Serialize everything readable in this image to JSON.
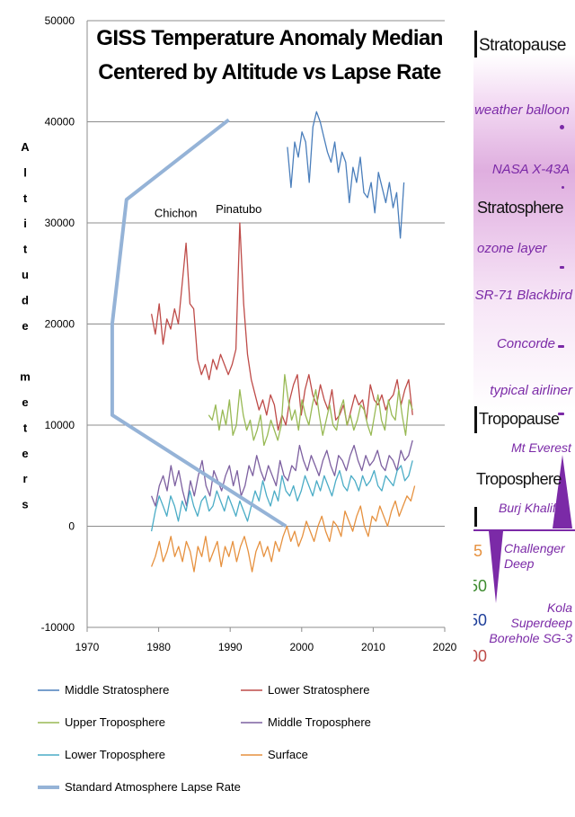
{
  "chart_data": {
    "type": "line",
    "title": "GISS Temperature Anomaly Median Centered by Altitude vs Lapse Rate",
    "title_lines": [
      "GISS Temperature Anomaly Median",
      "Centered by Altitude vs Lapse Rate"
    ],
    "ylabel": "Altitude meters",
    "ylabel_chars": [
      "A",
      "l",
      "t",
      "i",
      "t",
      "u",
      "d",
      "e",
      "",
      "m",
      "e",
      "t",
      "e",
      "r",
      "s"
    ],
    "xlabel": "",
    "xlim": [
      1970,
      2020
    ],
    "ylim": [
      -10000,
      50000
    ],
    "xticks": [
      1970,
      1980,
      1990,
      2000,
      2010,
      2020
    ],
    "yticks": [
      -10000,
      0,
      10000,
      20000,
      30000,
      40000,
      50000
    ],
    "xtick_labels": [
      "1970",
      "1980",
      "1990",
      "2000",
      "2010",
      "2020"
    ],
    "ytick_labels": [
      "-10000",
      "0",
      "10000",
      "20000",
      "30000",
      "40000",
      "50000"
    ],
    "grid": "horizontal",
    "legend_position": "bottom",
    "annotations": [
      {
        "text": "Chichon",
        "x": 1982.4,
        "y": 30600
      },
      {
        "text": "Pinatubo",
        "x": 1991.2,
        "y": 31000
      }
    ],
    "series": [
      {
        "name": "Middle Stratosphere",
        "color": "#4a7ebb",
        "x_start": 1998.0,
        "x_end": 2014.3,
        "values": [
          37500,
          33500,
          38000,
          36500,
          39000,
          38000,
          34000,
          39500,
          41000,
          40000,
          38500,
          37000,
          36000,
          38000,
          35000,
          37000,
          36000,
          32000,
          35500,
          34000,
          36500,
          33000,
          32500,
          34000,
          31000,
          35000,
          33500,
          32000,
          34000,
          31500,
          33000,
          28500,
          34000
        ]
      },
      {
        "name": "Lower Stratosphere",
        "color": "#be4b48",
        "x_start": 1979.0,
        "x_end": 2015.5,
        "values": [
          21000,
          19000,
          22000,
          18000,
          20500,
          19500,
          21500,
          20000,
          24000,
          28000,
          22000,
          21500,
          16500,
          15000,
          16000,
          14500,
          16500,
          15500,
          17000,
          16000,
          15000,
          16000,
          17500,
          30000,
          22000,
          17000,
          14500,
          13000,
          11500,
          12500,
          11000,
          13000,
          12000,
          9500,
          11000,
          10000,
          12500,
          14000,
          15000,
          11000,
          13500,
          15000,
          13000,
          12000,
          14000,
          12500,
          11500,
          13500,
          10500,
          11000,
          12000,
          10000,
          11500,
          13000,
          12000,
          12500,
          10500,
          14000,
          12500,
          12000,
          13000,
          11500,
          12500,
          13000,
          14500,
          12000,
          13500,
          14500,
          11000
        ]
      },
      {
        "name": "Upper Troposphere",
        "color": "#98b954",
        "x_start": 1987.0,
        "x_end": 2015.5,
        "values": [
          11000,
          10500,
          12000,
          9500,
          11500,
          10000,
          12500,
          9000,
          10000,
          13500,
          11000,
          9500,
          10500,
          8500,
          9500,
          11000,
          8000,
          9000,
          10500,
          9500,
          8500,
          10000,
          15000,
          12500,
          10500,
          11500,
          9500,
          12500,
          11000,
          10000,
          12000,
          13500,
          11000,
          9000,
          10500,
          12000,
          10000,
          9500,
          11500,
          12500,
          10000,
          11000,
          9500,
          10500,
          12000,
          11500,
          10000,
          9000,
          11000,
          13000,
          10500,
          9500,
          12500,
          11000,
          10500,
          13500,
          11000,
          9000,
          12500,
          11500
        ]
      },
      {
        "name": "Middle Troposphere",
        "color": "#7d60a0",
        "x_start": 1979.0,
        "x_end": 2015.5,
        "values": [
          3000,
          2000,
          4000,
          5000,
          3500,
          6000,
          4000,
          5500,
          3500,
          2000,
          4500,
          3000,
          5000,
          6500,
          4000,
          3000,
          5500,
          4500,
          3500,
          5000,
          6000,
          4000,
          5500,
          3000,
          4000,
          6000,
          5000,
          7000,
          5500,
          4500,
          6000,
          5000,
          4000,
          6500,
          5000,
          4500,
          6000,
          5500,
          8000,
          6500,
          5500,
          7000,
          6000,
          5000,
          6500,
          7500,
          6000,
          5000,
          7000,
          6500,
          5500,
          7000,
          8000,
          6500,
          5500,
          7000,
          6000,
          6500,
          7500,
          6000,
          5500,
          7000,
          6500,
          5500,
          7500,
          6500,
          7000,
          8500
        ]
      },
      {
        "name": "Lower Troposphere",
        "color": "#4aacc6",
        "x_start": 1979.0,
        "x_end": 2015.5,
        "values": [
          -500,
          1500,
          3000,
          2000,
          1000,
          3000,
          2000,
          500,
          2500,
          1500,
          3500,
          2000,
          1000,
          2500,
          3000,
          1500,
          2000,
          3500,
          2500,
          1500,
          3000,
          2000,
          1000,
          2500,
          1500,
          500,
          2000,
          3500,
          2500,
          4500,
          3000,
          2000,
          3500,
          2500,
          5000,
          3500,
          3000,
          4000,
          2500,
          3500,
          5000,
          4000,
          3000,
          4500,
          3500,
          5000,
          4000,
          3000,
          4500,
          5500,
          4000,
          3500,
          5000,
          4500,
          3500,
          5000,
          4000,
          4500,
          5500,
          4000,
          3500,
          5000,
          4500,
          4000,
          5500,
          6000,
          4500,
          5000,
          6500
        ]
      },
      {
        "name": "Surface",
        "color": "#e6913f",
        "x_start": 1979.0,
        "x_end": 2015.8,
        "values": [
          -4000,
          -3000,
          -1500,
          -3500,
          -2500,
          -1000,
          -3000,
          -2000,
          -3500,
          -1500,
          -2500,
          -4500,
          -2000,
          -3000,
          -1000,
          -3500,
          -2500,
          -1500,
          -4000,
          -2000,
          -3000,
          -1500,
          -3500,
          -2000,
          -1000,
          -2500,
          -4500,
          -2500,
          -1500,
          -3000,
          -2000,
          -3500,
          -1500,
          -2500,
          -1000,
          0,
          -1500,
          -500,
          -2000,
          -1000,
          500,
          -500,
          -1500,
          0,
          1000,
          -500,
          -1500,
          500,
          0,
          -1000,
          1500,
          500,
          -500,
          1000,
          2000,
          0,
          -1000,
          1000,
          500,
          2000,
          1000,
          0,
          1500,
          2500,
          1000,
          2000,
          3000,
          2500,
          4000
        ]
      },
      {
        "name": "Standard Atmosphere Lapse Rate",
        "color": "#95b3d7",
        "role": "lapse-rate",
        "points": [
          [
            1997.8,
            0
          ],
          [
            1973.5,
            11000
          ],
          [
            1973.5,
            20000
          ],
          [
            1975.5,
            32300
          ],
          [
            1989.8,
            40200
          ]
        ]
      }
    ]
  },
  "side_panel": {
    "labels": {
      "stratopause": "Stratopause",
      "weather_balloon": "weather balloon",
      "nasa": "NASA X-43A",
      "stratosphere": "Stratosphere",
      "ozone": "ozone layer",
      "sr71": "SR-71 Blackbird",
      "concorde": "Concorde",
      "airliner": "typical airliner",
      "tropopause": "Tropopause",
      "everest": "Mt Everest",
      "troposphere": "Troposphere",
      "burj": "Burj Khalifa",
      "challenger": "Challenger\nDeep",
      "kola": "Kola\nSuperdeep\nBorehole SG-3"
    },
    "edge_numbers": [
      "5",
      "50",
      "50",
      "00"
    ],
    "edge_colors": [
      "#e6913f",
      "#3d8b2f",
      "#1f3f9a",
      "#be4b48"
    ],
    "accent_color": "#7b2aa7"
  }
}
